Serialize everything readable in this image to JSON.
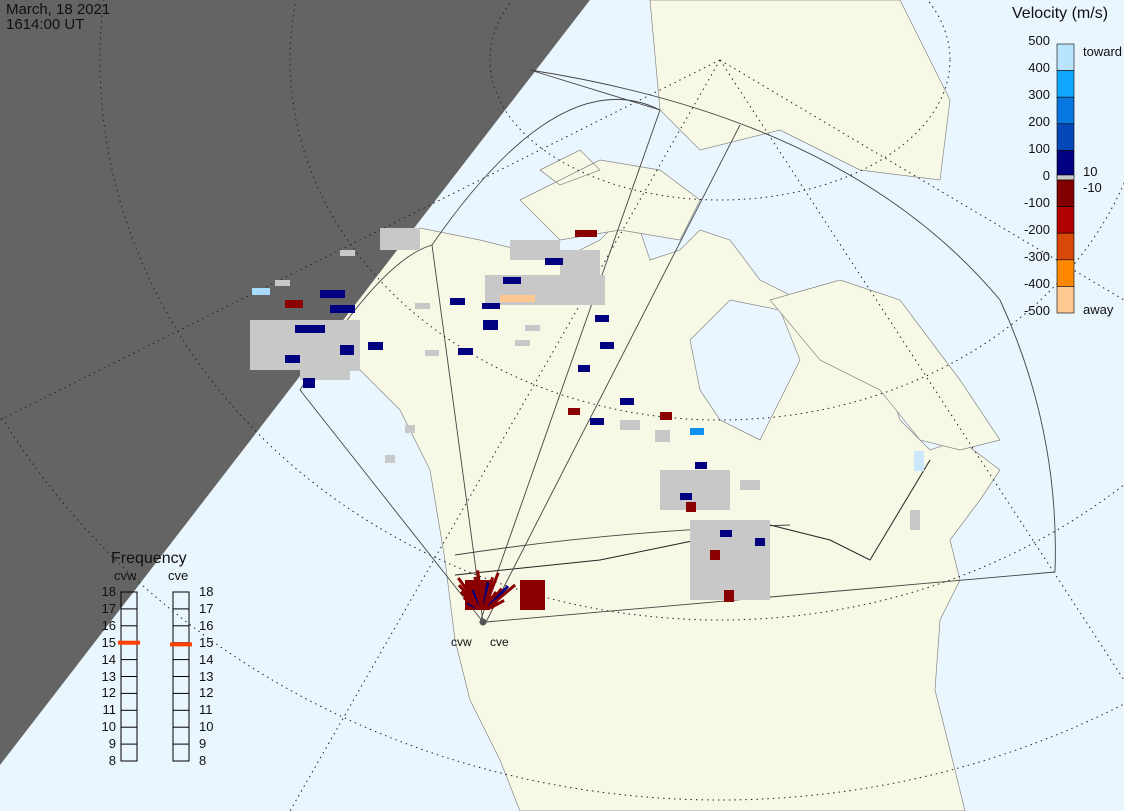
{
  "header": {
    "date": "March, 18 2021",
    "time": "1614:00 UT"
  },
  "velocity_scale": {
    "title": "Velocity (m/s)",
    "ticks": [
      "500",
      "400",
      "300",
      "200",
      "100",
      "0",
      "-100",
      "-200",
      "-300",
      "-400",
      "-500"
    ],
    "toward_label": "toward",
    "away_label": "away",
    "low_threshold_pos": "10",
    "low_threshold_neg": "-10",
    "colors": [
      "#b8e4ff",
      "#10a8ff",
      "#0878e0",
      "#0448b8",
      "#000080",
      "#c8c8c8",
      "#800000",
      "#b00000",
      "#d84808",
      "#ff8800",
      "#ffc890"
    ]
  },
  "frequency": {
    "title": "Frequency",
    "radars": [
      {
        "name": "cvw",
        "value": 15
      },
      {
        "name": "cve",
        "value": 14.9
      }
    ],
    "ticks": [
      "18",
      "17",
      "16",
      "15",
      "14",
      "13",
      "12",
      "11",
      "10",
      "9",
      "8"
    ],
    "marker_color": "#ff4000"
  },
  "stations": [
    {
      "name": "cvw"
    },
    {
      "name": "cve"
    }
  ],
  "map": {
    "ocean_color": "#eaf6fd",
    "land_color": "#f8f8e6",
    "night_color": "#646464",
    "ground_scatter_color": "#c8c8c8"
  }
}
